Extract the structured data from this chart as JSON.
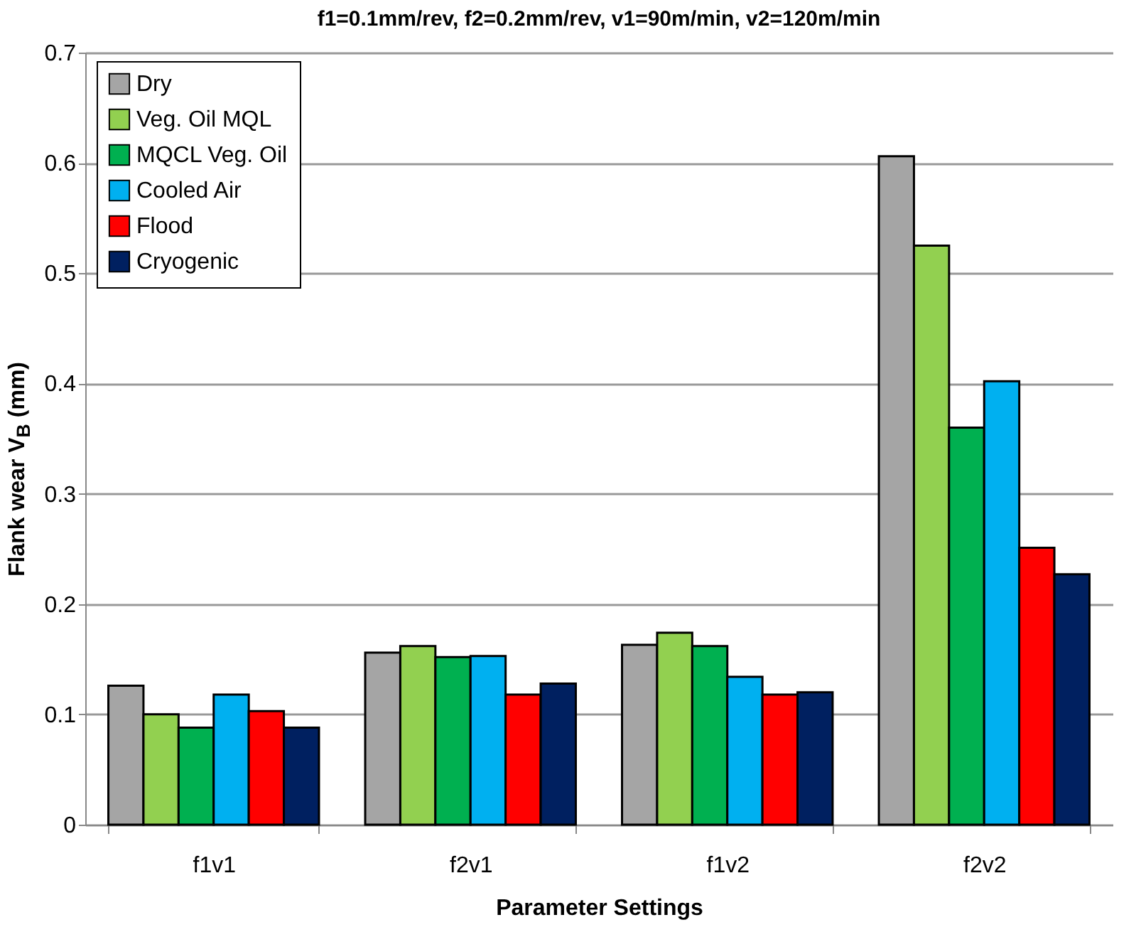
{
  "chart_data": {
    "type": "bar",
    "title": "f1=0.1mm/rev, f2=0.2mm/rev, v1=90m/min, v2=120m/min",
    "xlabel": "Parameter Settings",
    "ylabel": "Flank wear V$_{B}$ (mm)",
    "categories": [
      "f1v1",
      "f2v1",
      "f1v2",
      "f2v2"
    ],
    "series": [
      {
        "name": "Dry",
        "color": "#a5a5a5",
        "values": [
          0.126,
          0.156,
          0.163,
          0.606
        ]
      },
      {
        "name": "Veg. Oil MQL",
        "color": "#92d050",
        "values": [
          0.1,
          0.162,
          0.174,
          0.525
        ]
      },
      {
        "name": "MQCL Veg. Oil",
        "color": "#00b050",
        "values": [
          0.088,
          0.152,
          0.162,
          0.36
        ]
      },
      {
        "name": "Cooled Air",
        "color": "#00b0f0",
        "values": [
          0.118,
          0.153,
          0.134,
          0.402
        ]
      },
      {
        "name": "Flood",
        "color": "#ff0000",
        "values": [
          0.103,
          0.118,
          0.118,
          0.251
        ]
      },
      {
        "name": "Cryogenic",
        "color": "#002060",
        "values": [
          0.088,
          0.128,
          0.12,
          0.227
        ]
      }
    ],
    "ylim": [
      0,
      0.7
    ],
    "yticks": [
      0,
      0.1,
      0.2,
      0.3,
      0.4,
      0.5,
      0.6,
      0.7
    ],
    "grid": "y",
    "legend": "top left"
  }
}
